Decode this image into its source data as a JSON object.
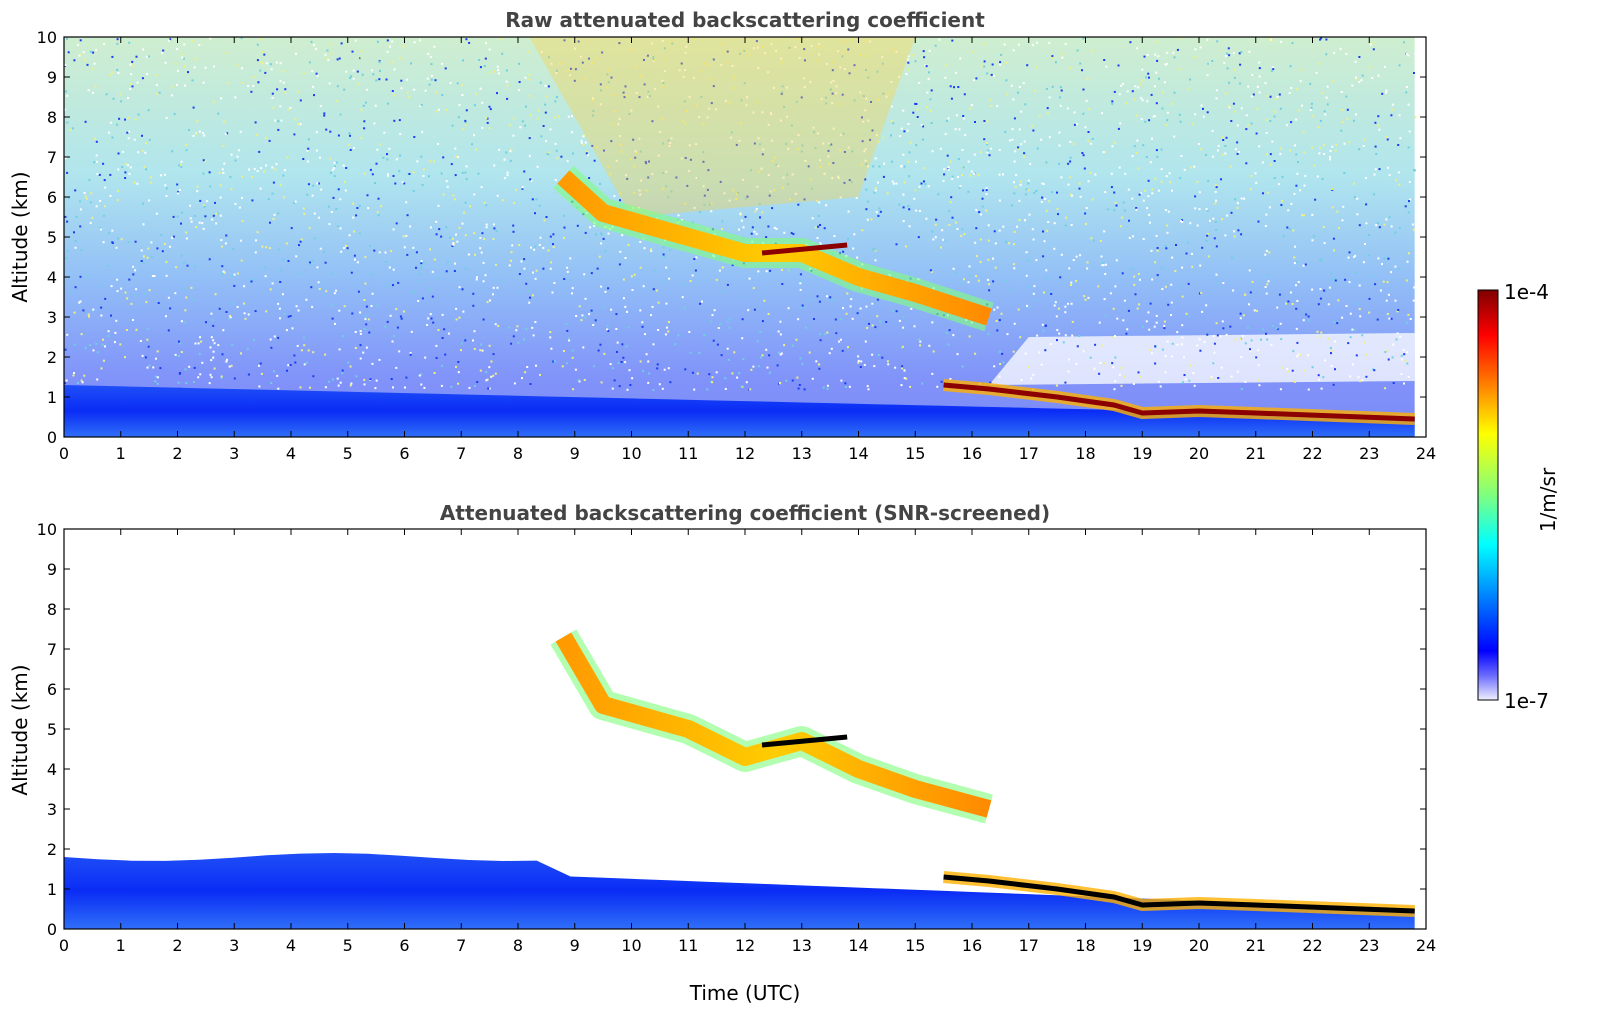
{
  "chart_data": [
    {
      "type": "heatmap",
      "title": "Raw attenuated backscattering coefficient",
      "xlabel": "",
      "ylabel": "Altitude (km)",
      "xlim": [
        0,
        24
      ],
      "ylim": [
        0,
        10
      ],
      "xticks": [
        "0",
        "1",
        "2",
        "3",
        "4",
        "5",
        "6",
        "7",
        "8",
        "9",
        "10",
        "11",
        "12",
        "13",
        "14",
        "15",
        "16",
        "17",
        "18",
        "19",
        "20",
        "21",
        "22",
        "23",
        "24"
      ],
      "yticks": [
        "0",
        "1",
        "2",
        "3",
        "4",
        "5",
        "6",
        "7",
        "8",
        "9",
        "10"
      ],
      "colorscale": "jet",
      "features": [
        {
          "kind": "boundary_layer",
          "time": [
            0,
            23.8
          ],
          "top_km_start": 1.3,
          "top_km_end": 0.5
        },
        {
          "kind": "aerosol_layer_top",
          "points": [
            [
              15.5,
              1.3
            ],
            [
              16.3,
              1.2
            ],
            [
              17.5,
              1.0
            ],
            [
              18.5,
              0.8
            ],
            [
              19,
              0.6
            ],
            [
              20,
              0.65
            ],
            [
              21,
              0.6
            ],
            [
              23.8,
              0.45
            ]
          ]
        },
        {
          "kind": "slanted_cloud_layer",
          "points": [
            [
              8.8,
              6.5
            ],
            [
              9.5,
              5.6
            ],
            [
              11,
              5.0
            ],
            [
              12,
              4.6
            ],
            [
              13,
              4.6
            ],
            [
              14,
              4.0
            ],
            [
              15,
              3.6
            ],
            [
              16.3,
              3.0
            ]
          ]
        }
      ]
    },
    {
      "type": "heatmap",
      "title": "Attenuated backscattering coefficient (SNR-screened)",
      "xlabel": "Time (UTC)",
      "ylabel": "Altitude (km)",
      "xlim": [
        0,
        24
      ],
      "ylim": [
        0,
        10
      ],
      "xticks": [
        "0",
        "1",
        "2",
        "3",
        "4",
        "5",
        "6",
        "7",
        "8",
        "9",
        "10",
        "11",
        "12",
        "13",
        "14",
        "15",
        "16",
        "17",
        "18",
        "19",
        "20",
        "21",
        "22",
        "23",
        "24"
      ],
      "yticks": [
        "0",
        "1",
        "2",
        "3",
        "4",
        "5",
        "6",
        "7",
        "8",
        "9",
        "10"
      ],
      "colorscale": "jet",
      "features": [
        {
          "kind": "boundary_layer",
          "time": [
            0,
            23.8
          ],
          "top_km_start": 1.8,
          "top_km_end": 0.5
        },
        {
          "kind": "aerosol_layer_top",
          "points": [
            [
              15.5,
              1.3
            ],
            [
              16.3,
              1.2
            ],
            [
              17.5,
              1.0
            ],
            [
              18.5,
              0.8
            ],
            [
              19,
              0.6
            ],
            [
              20,
              0.65
            ],
            [
              21,
              0.6
            ],
            [
              23.8,
              0.45
            ]
          ]
        },
        {
          "kind": "slanted_cloud_layer",
          "points": [
            [
              8.8,
              7.3
            ],
            [
              9.5,
              5.6
            ],
            [
              11,
              5.0
            ],
            [
              12,
              4.3
            ],
            [
              13,
              4.7
            ],
            [
              14,
              4.0
            ],
            [
              15,
              3.5
            ],
            [
              16.3,
              3.0
            ]
          ]
        }
      ]
    }
  ],
  "colorbar": {
    "max_label": "1e-4",
    "min_label": "1e-7",
    "unit_label": "1/m/sr",
    "colors": [
      "#7f0000",
      "#ff0000",
      "#ff7f00",
      "#ffff00",
      "#7fff7f",
      "#00ffff",
      "#007fff",
      "#0000ff",
      "#00008f"
    ]
  }
}
